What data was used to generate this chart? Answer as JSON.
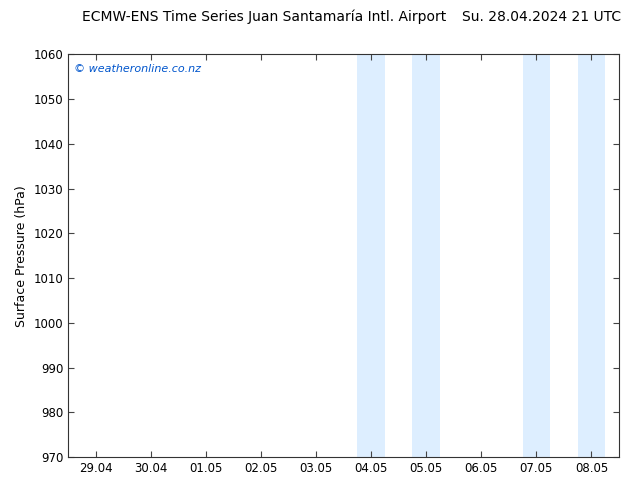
{
  "title_left": "ECMW-ENS Time Series Juan Santamaría Intl. Airport",
  "title_right": "Su. 28.04.2024 21 UTC",
  "ylabel": "Surface Pressure (hPa)",
  "ylim": [
    970,
    1060
  ],
  "yticks": [
    970,
    980,
    990,
    1000,
    1010,
    1020,
    1030,
    1040,
    1050,
    1060
  ],
  "xtick_labels": [
    "29.04",
    "30.04",
    "01.05",
    "02.05",
    "03.05",
    "04.05",
    "05.05",
    "06.05",
    "07.05",
    "08.05"
  ],
  "xtick_positions": [
    0,
    1,
    2,
    3,
    4,
    5,
    6,
    7,
    8,
    9
  ],
  "xlim": [
    -0.5,
    9.5
  ],
  "shaded_bands": [
    {
      "xmin": 4.75,
      "xmax": 5.25,
      "color": "#ddeeff"
    },
    {
      "xmin": 5.75,
      "xmax": 6.25,
      "color": "#ddeeff"
    },
    {
      "xmin": 7.75,
      "xmax": 8.25,
      "color": "#ddeeff"
    },
    {
      "xmin": 8.75,
      "xmax": 9.25,
      "color": "#ddeeff"
    }
  ],
  "watermark": "© weatheronline.co.nz",
  "watermark_color": "#0055cc",
  "background_color": "#ffffff",
  "plot_bg_color": "#ffffff",
  "band_color": "#ddeeff",
  "title_fontsize": 10,
  "tick_fontsize": 8.5,
  "ylabel_fontsize": 9
}
